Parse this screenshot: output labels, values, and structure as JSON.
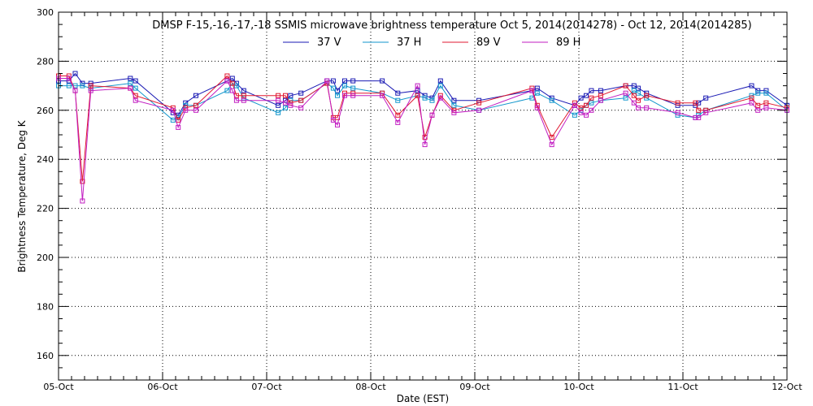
{
  "chart_data": {
    "type": "line",
    "title": "DMSP F-15,-16,-17,-18 SSMIS microwave brightness temperature Oct  5, 2014(2014278) - Oct 12, 2014(2014285)",
    "xlabel": "Date (EST)",
    "ylabel": "Brightness Temperature, Deg K",
    "xlim": [
      0,
      7
    ],
    "ylim": [
      150,
      300
    ],
    "yticks": [
      160,
      180,
      200,
      220,
      240,
      260,
      280,
      300
    ],
    "xticks": [
      {
        "value": 0,
        "label": "05-Oct"
      },
      {
        "value": 1,
        "label": "06-Oct"
      },
      {
        "value": 2,
        "label": "07-Oct"
      },
      {
        "value": 3,
        "label": "08-Oct"
      },
      {
        "value": 4,
        "label": "09-Oct"
      },
      {
        "value": 5,
        "label": "10-Oct"
      },
      {
        "value": 6,
        "label": "11-Oct"
      },
      {
        "value": 7,
        "label": "12-Oct"
      }
    ],
    "legend_position": "top",
    "series": [
      {
        "name": "37 V",
        "color": "#1a1ab4",
        "x": [
          0.0,
          0.1,
          0.16,
          0.23,
          0.31,
          0.69,
          0.74,
          1.1,
          1.15,
          1.22,
          1.32,
          1.62,
          1.67,
          1.71,
          1.78,
          2.11,
          2.18,
          2.23,
          2.33,
          2.58,
          2.64,
          2.68,
          2.75,
          2.83,
          3.11,
          3.26,
          3.45,
          3.52,
          3.59,
          3.67,
          3.8,
          4.04,
          4.55,
          4.6,
          4.74,
          4.96,
          5.02,
          5.07,
          5.12,
          5.21,
          5.45,
          5.53,
          5.57,
          5.65,
          5.95,
          6.12,
          6.15,
          6.22,
          6.66,
          6.72,
          6.8,
          7.0
        ],
        "y": [
          272,
          272,
          275,
          271,
          271,
          273,
          272,
          259,
          258,
          263,
          266,
          272,
          273,
          271,
          268,
          262,
          264,
          266,
          267,
          272,
          272,
          268,
          272,
          272,
          272,
          267,
          268,
          266,
          265,
          272,
          264,
          264,
          268,
          269,
          265,
          262,
          265,
          266,
          268,
          268,
          270,
          270,
          269,
          267,
          262,
          262,
          263,
          265,
          270,
          268,
          268,
          262
        ]
      },
      {
        "name": "37 H",
        "color": "#1296cc",
        "x": [
          0.0,
          0.1,
          0.16,
          0.23,
          0.31,
          0.69,
          0.74,
          1.1,
          1.15,
          1.22,
          1.32,
          1.62,
          1.67,
          1.71,
          1.78,
          2.11,
          2.18,
          2.23,
          2.33,
          2.58,
          2.64,
          2.68,
          2.75,
          2.83,
          3.11,
          3.26,
          3.45,
          3.52,
          3.59,
          3.67,
          3.8,
          4.04,
          4.55,
          4.6,
          4.74,
          4.96,
          5.02,
          5.07,
          5.12,
          5.21,
          5.45,
          5.53,
          5.57,
          5.65,
          5.95,
          6.12,
          6.15,
          6.22,
          6.66,
          6.72,
          6.8,
          7.0
        ],
        "y": [
          270,
          270,
          270,
          270,
          269,
          271,
          269,
          256,
          257,
          262,
          262,
          268,
          271,
          270,
          265,
          259,
          261,
          264,
          264,
          271,
          269,
          266,
          270,
          269,
          267,
          264,
          266,
          265,
          264,
          270,
          262,
          260,
          265,
          267,
          264,
          258,
          260,
          262,
          263,
          264,
          265,
          268,
          267,
          265,
          258,
          257,
          258,
          260,
          266,
          267,
          267,
          260
        ]
      },
      {
        "name": "89 V",
        "color": "#e01830",
        "x": [
          0.0,
          0.1,
          0.16,
          0.23,
          0.31,
          0.69,
          0.74,
          1.1,
          1.15,
          1.22,
          1.32,
          1.62,
          1.67,
          1.71,
          1.78,
          2.11,
          2.18,
          2.23,
          2.33,
          2.58,
          2.64,
          2.68,
          2.75,
          2.83,
          3.11,
          3.26,
          3.45,
          3.52,
          3.59,
          3.67,
          3.8,
          4.04,
          4.55,
          4.6,
          4.74,
          4.96,
          5.02,
          5.07,
          5.12,
          5.21,
          5.45,
          5.53,
          5.57,
          5.65,
          5.95,
          6.12,
          6.15,
          6.22,
          6.66,
          6.72,
          6.8,
          7.0
        ],
        "y": [
          274,
          274,
          268,
          231,
          270,
          269,
          266,
          261,
          256,
          261,
          262,
          274,
          271,
          266,
          266,
          266,
          266,
          263,
          264,
          271,
          257,
          257,
          267,
          267,
          267,
          258,
          266,
          249,
          258,
          266,
          260,
          263,
          269,
          262,
          249,
          263,
          261,
          262,
          265,
          266,
          270,
          266,
          264,
          266,
          263,
          263,
          260,
          260,
          265,
          262,
          263,
          261
        ]
      },
      {
        "name": "89 H",
        "color": "#c21ec2",
        "x": [
          0.0,
          0.1,
          0.16,
          0.23,
          0.31,
          0.69,
          0.74,
          1.1,
          1.15,
          1.22,
          1.32,
          1.62,
          1.67,
          1.71,
          1.78,
          2.11,
          2.18,
          2.23,
          2.33,
          2.58,
          2.64,
          2.68,
          2.75,
          2.83,
          3.11,
          3.26,
          3.45,
          3.52,
          3.59,
          3.67,
          3.8,
          4.04,
          4.55,
          4.6,
          4.74,
          4.96,
          5.02,
          5.07,
          5.12,
          5.21,
          5.45,
          5.53,
          5.57,
          5.65,
          5.95,
          6.12,
          6.15,
          6.22,
          6.66,
          6.72,
          6.8,
          7.0
        ],
        "y": [
          273,
          273,
          268,
          223,
          268,
          269,
          264,
          260,
          253,
          260,
          260,
          272,
          268,
          264,
          264,
          264,
          263,
          262,
          261,
          272,
          256,
          254,
          266,
          266,
          266,
          255,
          270,
          246,
          258,
          265,
          259,
          260,
          268,
          261,
          246,
          262,
          259,
          258,
          260,
          264,
          267,
          263,
          261,
          261,
          259,
          257,
          257,
          259,
          263,
          260,
          261,
          260
        ]
      }
    ]
  }
}
